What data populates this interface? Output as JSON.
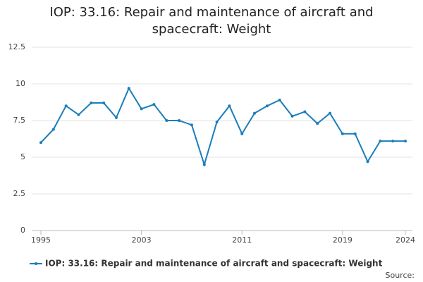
{
  "chart_data": {
    "type": "line",
    "title": "IOP: 33.16: Repair and maintenance of aircraft and spacecraft: Weight",
    "x": [
      1995,
      1996,
      1997,
      1998,
      1999,
      2000,
      2001,
      2002,
      2003,
      2004,
      2005,
      2006,
      2007,
      2008,
      2009,
      2010,
      2011,
      2012,
      2013,
      2014,
      2015,
      2016,
      2017,
      2018,
      2019,
      2020,
      2021,
      2022,
      2023,
      2024
    ],
    "series": [
      {
        "name": "IOP: 33.16: Repair and maintenance of aircraft and spacecraft: Weight",
        "color": "#1b7dbb",
        "values": [
          6.0,
          6.9,
          8.5,
          7.9,
          8.7,
          8.7,
          7.7,
          9.7,
          8.3,
          8.6,
          7.5,
          7.5,
          7.2,
          4.5,
          7.4,
          8.5,
          6.6,
          8.0,
          8.5,
          8.9,
          7.8,
          8.1,
          7.3,
          8.0,
          6.6,
          6.6,
          4.7,
          6.1,
          6.1,
          6.1
        ]
      }
    ],
    "xlim": [
      1995,
      2024
    ],
    "xticks": [
      1995,
      2003,
      2011,
      2019,
      2024
    ],
    "ylim": [
      0,
      12.5
    ],
    "yticks": [
      0,
      2.5,
      5,
      7.5,
      10,
      12.5
    ],
    "grid": true,
    "legend": "bottom",
    "source_label": "Source:"
  }
}
